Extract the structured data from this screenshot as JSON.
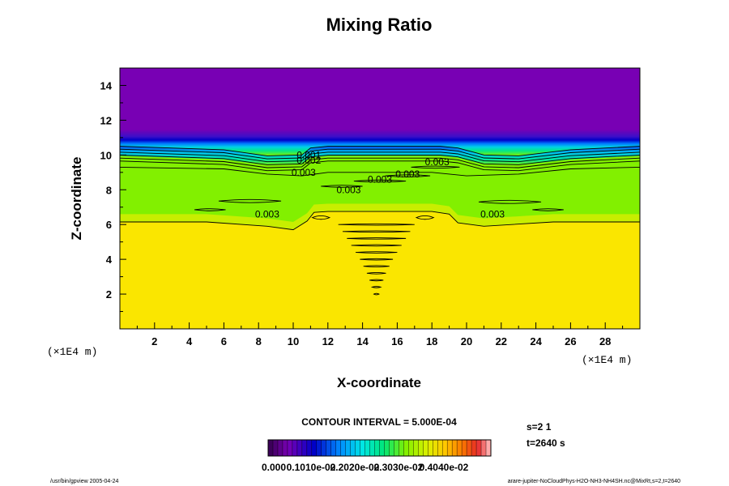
{
  "chart_data": {
    "type": "heatmap",
    "title": "Mixing Ratio",
    "xlabel": "X-coordinate",
    "ylabel": "Z-coordinate",
    "x_unit_label": "(×1E4 m)",
    "y_unit_label": "(×1E4 m)",
    "xlim": [
      0,
      30
    ],
    "ylim": [
      0,
      15
    ],
    "x_ticks": [
      2,
      4,
      6,
      8,
      10,
      12,
      14,
      16,
      18,
      20,
      22,
      24,
      26,
      28
    ],
    "y_ticks": [
      2,
      4,
      6,
      8,
      10,
      12,
      14
    ],
    "regions": [
      {
        "name": "upper",
        "color": "#7800b4"
      },
      {
        "name": "middle",
        "color": "#82f000"
      },
      {
        "name": "lower",
        "color": "#fae600"
      }
    ],
    "contour_labels": [
      {
        "text": "0.001",
        "x": 10.9,
        "z": 10.0
      },
      {
        "text": "0.002",
        "x": 10.9,
        "z": 9.7
      },
      {
        "text": "0.003",
        "x": 10.6,
        "z": 9.0
      },
      {
        "text": "0.003",
        "x": 13.2,
        "z": 8.0
      },
      {
        "text": "0.003",
        "x": 15.0,
        "z": 8.6
      },
      {
        "text": "0.003",
        "x": 16.6,
        "z": 8.9
      },
      {
        "text": "0.003",
        "x": 18.3,
        "z": 9.6
      },
      {
        "text": "0.003",
        "x": 8.5,
        "z": 6.6
      },
      {
        "text": "0.003",
        "x": 21.5,
        "z": 6.6
      }
    ],
    "contour_interval_text": "CONTOUR INTERVAL = 5.000E-04",
    "colorbar": {
      "labels": [
        "0.000",
        "0.1010e-02",
        "0.2020e-02",
        "0.3030e-02",
        "0.4040e-02"
      ],
      "n_colors": 46,
      "range": [
        0,
        0.0046
      ]
    },
    "info": [
      "s=2 1",
      "t=2640 s"
    ],
    "footer_left": "/usr/bin/gpview 2005-04-24",
    "footer_right": "arare-jupiter-NoCloudPhys-H2O-NH3-NH4SH.nc@MixRt,s=2,t=2640"
  }
}
